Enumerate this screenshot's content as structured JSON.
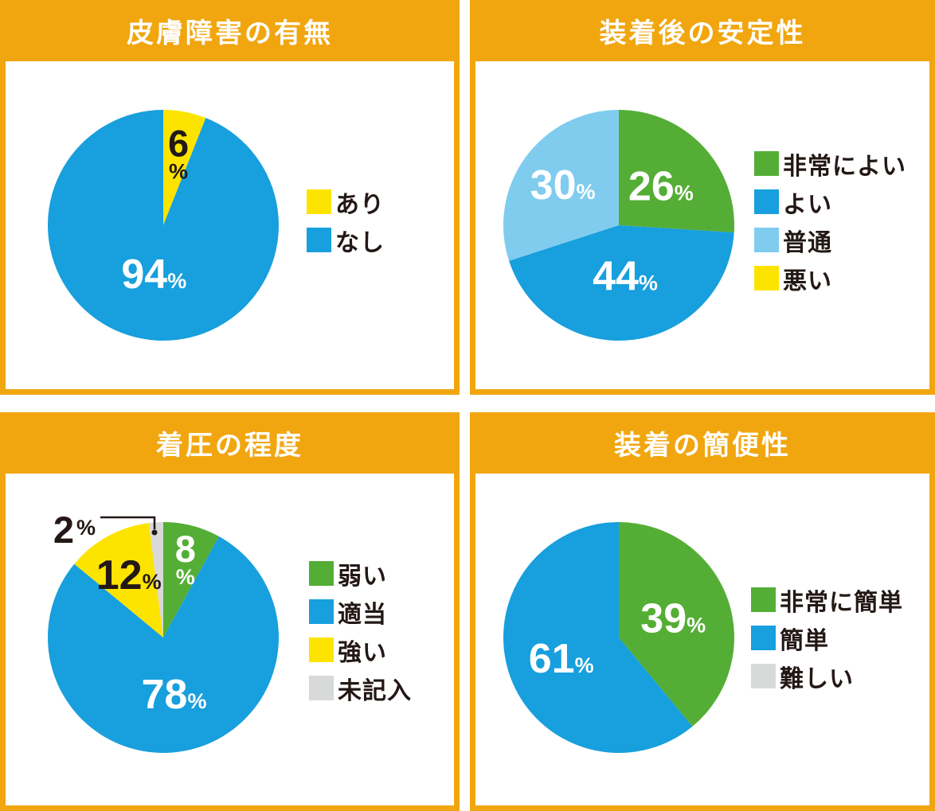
{
  "page": {
    "background": "#FFFFFF",
    "accent_orange": "#F1A60F",
    "label_unit": "%"
  },
  "colors": {
    "blue": "#189FDD",
    "light_blue": "#7FCCEF",
    "green": "#54AE35",
    "yellow": "#FCE400",
    "gray": "#D8D9D9",
    "label_dark": "#231815",
    "label_light": "#FFFFFF"
  },
  "chart_data": [
    {
      "type": "pie",
      "title": "皮膚障害の有無",
      "unit": "%",
      "start_angle_deg": 0,
      "direction": "clockwise",
      "legend_position": "right",
      "slices": [
        {
          "label": "あり",
          "value": 6,
          "color": "#FCE400",
          "text_color": "#231815",
          "label_style": "stacked",
          "label_r_frac": 0.7
        },
        {
          "label": "なし",
          "value": 94,
          "color": "#189FDD",
          "text_color": "#FFFFFF",
          "label_style": "inline",
          "label_r_frac": 0.43
        }
      ],
      "legend": [
        {
          "label": "あり",
          "color": "#FCE400"
        },
        {
          "label": "なし",
          "color": "#189FDD"
        }
      ]
    },
    {
      "type": "pie",
      "title": "装着後の安定性",
      "unit": "%",
      "start_angle_deg": 0,
      "direction": "clockwise",
      "legend_position": "right",
      "slices": [
        {
          "label": "非常によい",
          "value": 26,
          "color": "#54AE35",
          "text_color": "#FFFFFF",
          "label_style": "inline",
          "label_r_frac": 0.5
        },
        {
          "label": "よい",
          "value": 44,
          "color": "#189FDD",
          "text_color": "#FFFFFF",
          "label_style": "inline",
          "label_r_frac": 0.44
        },
        {
          "label": "普通",
          "value": 30,
          "color": "#7FCCEF",
          "text_color": "#FFFFFF",
          "label_style": "inline",
          "label_r_frac": 0.6
        },
        {
          "label": "悪い",
          "value": 0,
          "color": "#FCE400",
          "text_color": "#231815",
          "label_style": "none",
          "label_r_frac": 0
        }
      ],
      "legend": [
        {
          "label": "非常によい",
          "color": "#54AE35"
        },
        {
          "label": "よい",
          "color": "#189FDD"
        },
        {
          "label": "普通",
          "color": "#7FCCEF"
        },
        {
          "label": "悪い",
          "color": "#FCE400"
        }
      ]
    },
    {
      "type": "pie",
      "title": "着圧の程度",
      "unit": "%",
      "start_angle_deg": 0,
      "direction": "clockwise",
      "legend_position": "right",
      "slices": [
        {
          "label": "弱い",
          "value": 8,
          "color": "#54AE35",
          "text_color": "#FFFFFF",
          "label_style": "stacked",
          "label_r_frac": 0.77
        },
        {
          "label": "適当",
          "value": 78,
          "color": "#189FDD",
          "text_color": "#FFFFFF",
          "label_style": "inline",
          "label_r_frac": 0.5
        },
        {
          "label": "強い",
          "value": 12,
          "color": "#FCE400",
          "text_color": "#231815",
          "label_style": "inline",
          "label_r_frac": 0.62
        },
        {
          "label": "未記入",
          "value": 2,
          "color": "#D8D9D9",
          "text_color": "#231815",
          "label_style": "callout-outside",
          "label_r_frac": 0.9
        }
      ],
      "legend": [
        {
          "label": "弱い",
          "color": "#54AE35"
        },
        {
          "label": "適当",
          "color": "#189FDD"
        },
        {
          "label": "強い",
          "color": "#FCE400"
        },
        {
          "label": "未記入",
          "color": "#D8D9D9"
        }
      ]
    },
    {
      "type": "pie",
      "title": "装着の簡便性",
      "unit": "%",
      "start_angle_deg": 0,
      "direction": "clockwise",
      "legend_position": "right",
      "slices": [
        {
          "label": "非常に簡単",
          "value": 39,
          "color": "#54AE35",
          "text_color": "#FFFFFF",
          "label_style": "inline",
          "label_r_frac": 0.5
        },
        {
          "label": "簡単",
          "value": 61,
          "color": "#189FDD",
          "text_color": "#FFFFFF",
          "label_style": "inline",
          "label_r_frac": 0.53
        },
        {
          "label": "難しい",
          "value": 0,
          "color": "#D8D9D9",
          "text_color": "#231815",
          "label_style": "none",
          "label_r_frac": 0
        }
      ],
      "legend": [
        {
          "label": "非常に簡単",
          "color": "#54AE35"
        },
        {
          "label": "簡単",
          "color": "#189FDD"
        },
        {
          "label": "難しい",
          "color": "#D8D9D9"
        }
      ]
    }
  ]
}
